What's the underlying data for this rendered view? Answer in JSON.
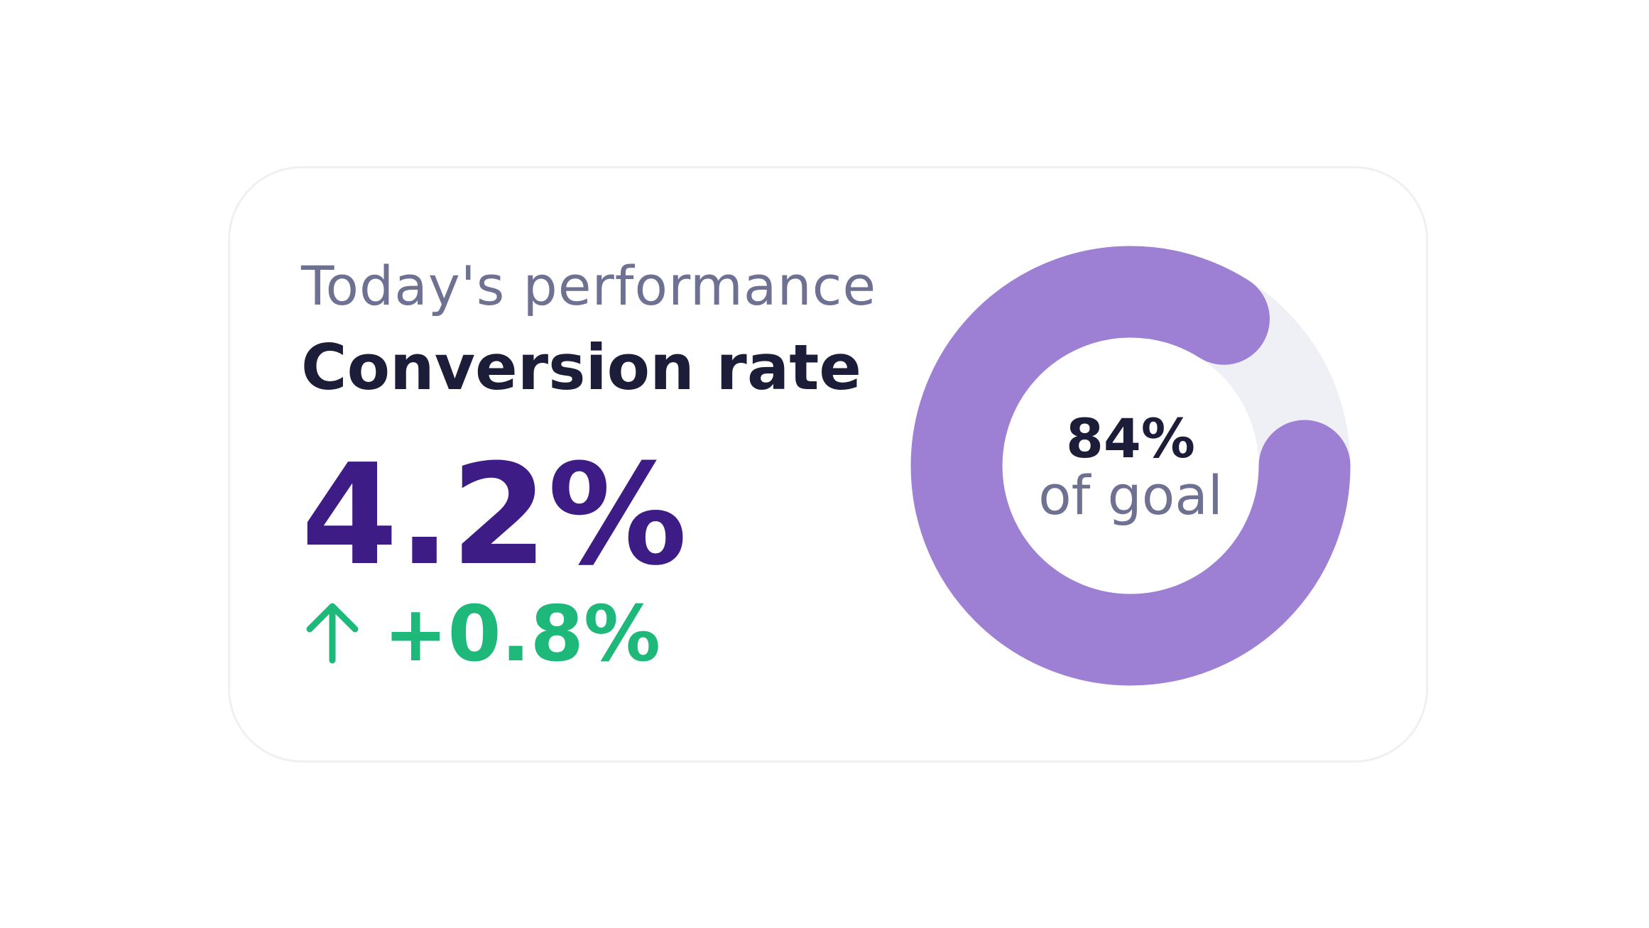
{
  "card": {
    "subtitle": "Today's performance",
    "title": "Conversion rate",
    "value": "4.2%",
    "change": "+0.8%",
    "gauge": {
      "value": 84,
      "value_label": "84%",
      "caption": "of goal"
    }
  }
}
